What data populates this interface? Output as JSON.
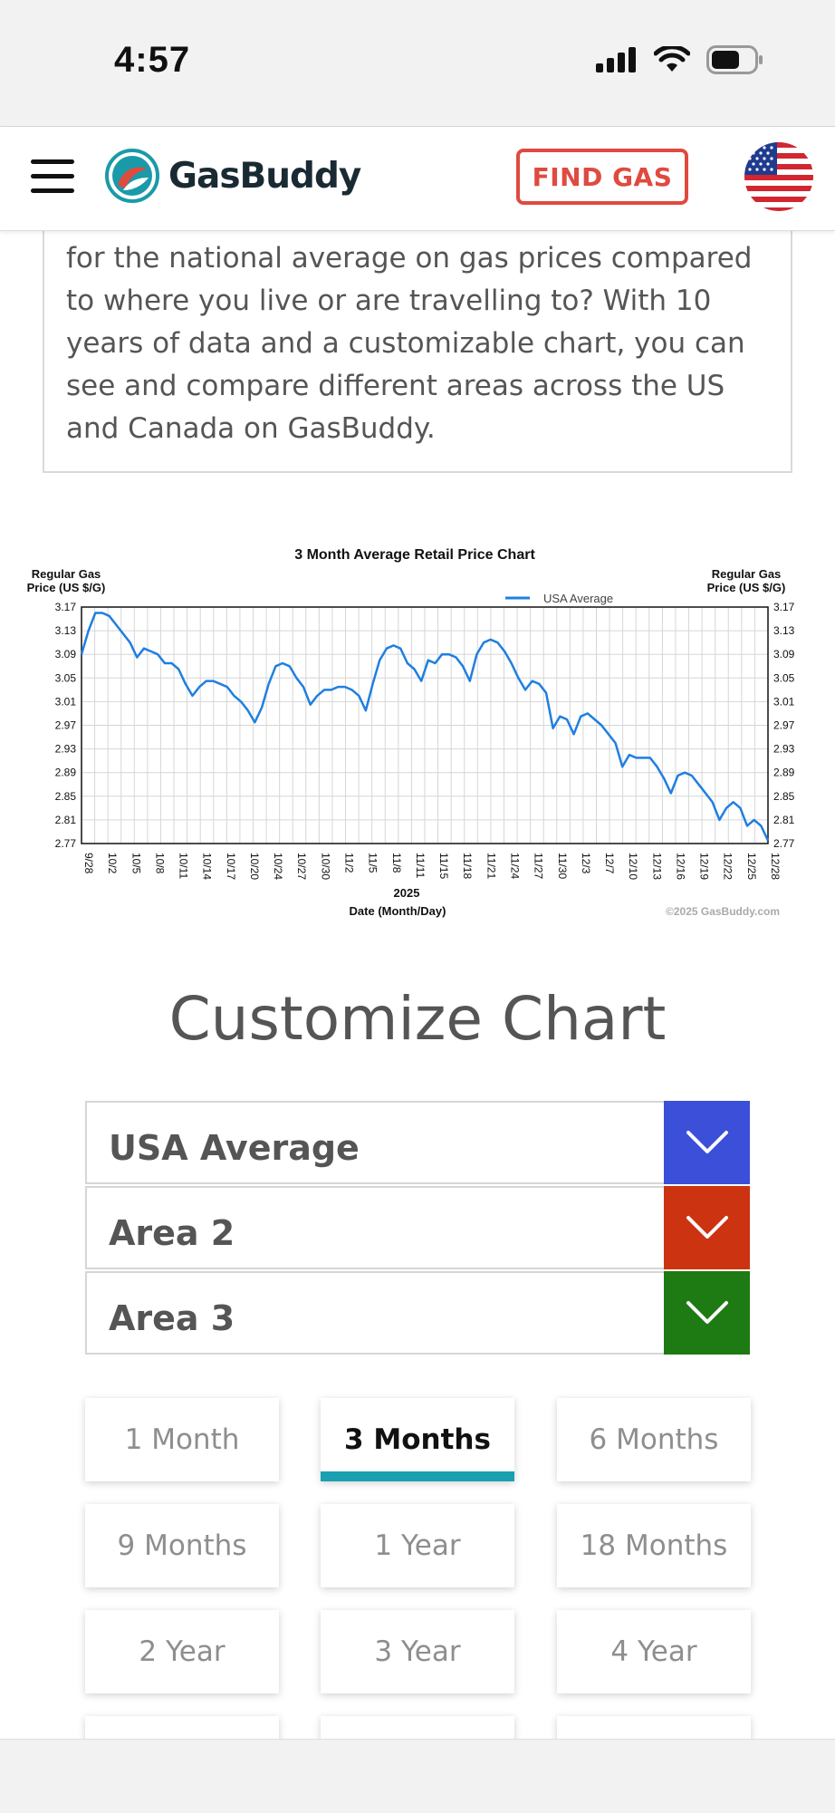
{
  "status_bar": {
    "time": "4:57",
    "icons": [
      "signal-icon",
      "wifi-icon",
      "battery-icon"
    ]
  },
  "header": {
    "logo_text": "GasBuddy",
    "find_gas_label": "FIND GAS",
    "menu_icon": "hamburger-icon",
    "flag_icon": "us-flag-icon"
  },
  "description": {
    "lines": [
      "for the national average on gas prices compared",
      "to where you live or are travelling to? With 10",
      "years of data and a customizable chart, you can",
      "see and compare different areas across the US",
      "and Canada on GasBuddy."
    ]
  },
  "chart_data": {
    "type": "line",
    "title": "3 Month Average Retail Price Chart",
    "ylabel_left": [
      "Regular Gas",
      "Price (US $/G)"
    ],
    "ylabel_right": [
      "Regular Gas",
      "Price (US $/G)"
    ],
    "xlabel_year": "2025",
    "xlabel": "Date (Month/Day)",
    "copyright": "©2025 GasBuddy.com",
    "ylim": [
      2.77,
      3.17
    ],
    "yticks": [
      "3.17",
      "3.13",
      "3.09",
      "3.05",
      "3.01",
      "2.97",
      "2.93",
      "2.89",
      "2.85",
      "2.81",
      "2.77"
    ],
    "xticks": [
      "9/28",
      "10/2",
      "10/5",
      "10/8",
      "10/11",
      "10/14",
      "10/17",
      "10/20",
      "10/24",
      "10/27",
      "10/30",
      "11/2",
      "11/5",
      "11/8",
      "11/11",
      "11/15",
      "11/18",
      "11/21",
      "11/24",
      "11/27",
      "11/30",
      "12/3",
      "12/7",
      "12/10",
      "12/13",
      "12/16",
      "12/19",
      "12/22",
      "12/25",
      "12/28"
    ],
    "legend_position": "top-right",
    "grid": true,
    "series": [
      {
        "name": "USA Average",
        "color": "#1f7fe0",
        "values": [
          3.09,
          3.13,
          3.16,
          3.16,
          3.155,
          3.14,
          3.125,
          3.11,
          3.085,
          3.1,
          3.095,
          3.09,
          3.075,
          3.075,
          3.065,
          3.04,
          3.02,
          3.035,
          3.045,
          3.045,
          3.04,
          3.035,
          3.02,
          3.01,
          2.995,
          2.975,
          3.0,
          3.04,
          3.07,
          3.075,
          3.07,
          3.05,
          3.035,
          3.005,
          3.02,
          3.03,
          3.03,
          3.035,
          3.035,
          3.03,
          3.02,
          2.995,
          3.04,
          3.08,
          3.1,
          3.105,
          3.1,
          3.075,
          3.065,
          3.045,
          3.08,
          3.075,
          3.09,
          3.09,
          3.085,
          3.07,
          3.045,
          3.09,
          3.11,
          3.115,
          3.11,
          3.095,
          3.075,
          3.05,
          3.03,
          3.045,
          3.04,
          3.025,
          2.965,
          2.985,
          2.98,
          2.955,
          2.985,
          2.99,
          2.98,
          2.97,
          2.955,
          2.94,
          2.9,
          2.92,
          2.915,
          2.915,
          2.915,
          2.9,
          2.88,
          2.855,
          2.885,
          2.89,
          2.885,
          2.87,
          2.855,
          2.84,
          2.81,
          2.83,
          2.84,
          2.83,
          2.8,
          2.81,
          2.8,
          2.775
        ]
      }
    ]
  },
  "customize": {
    "title": "Customize Chart",
    "areas": [
      {
        "label": "USA Average",
        "color": "#3b4fd8"
      },
      {
        "label": "Area 2",
        "color": "#cc3311"
      },
      {
        "label": "Area 3",
        "color": "#1e7a12"
      }
    ],
    "periods": [
      "1 Month",
      "3 Months",
      "6 Months",
      "9 Months",
      "1 Year",
      "18 Months",
      "2 Year",
      "3 Year",
      "4 Year"
    ],
    "active_period": "3 Months"
  }
}
